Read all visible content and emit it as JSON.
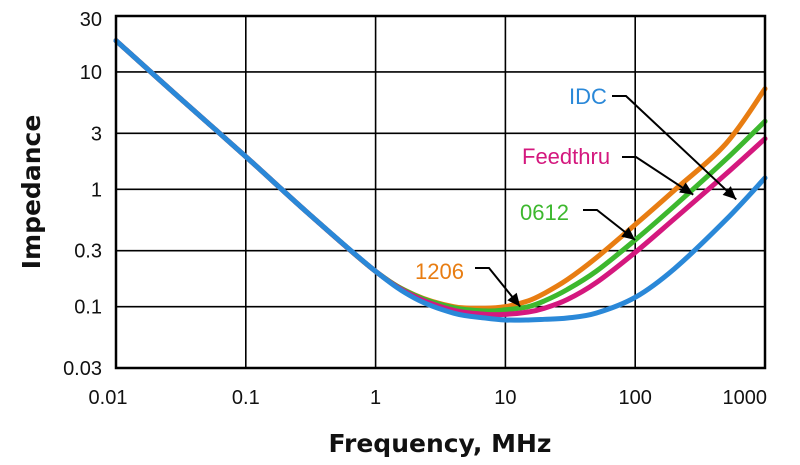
{
  "chart_data": {
    "type": "line",
    "title": "",
    "xlabel": "Frequency, MHz",
    "ylabel": "Impedance",
    "x_scale": "log",
    "y_scale": "log",
    "xlim": [
      0.01,
      1000
    ],
    "ylim": [
      0.03,
      30
    ],
    "grid": true,
    "x_ticks": [
      {
        "value": 0.01,
        "label": "0.01"
      },
      {
        "value": 0.1,
        "label": "0.1"
      },
      {
        "value": 1,
        "label": "1"
      },
      {
        "value": 10,
        "label": "10"
      },
      {
        "value": 100,
        "label": "100"
      },
      {
        "value": 1000,
        "label": "1000"
      }
    ],
    "y_ticks": [
      {
        "value": 0.03,
        "label": "0.03"
      },
      {
        "value": 0.1,
        "label": "0.1"
      },
      {
        "value": 0.3,
        "label": "0.3"
      },
      {
        "value": 1,
        "label": "1"
      },
      {
        "value": 3,
        "label": "3"
      },
      {
        "value": 10,
        "label": "10"
      },
      {
        "value": 30,
        "label": "30"
      }
    ],
    "series": [
      {
        "name": "1206",
        "color": "#E87D12",
        "label_anchor": {
          "x": 13,
          "y": 0.1
        },
        "x": [
          0.01,
          0.03,
          0.1,
          0.3,
          1,
          2,
          4,
          7,
          10,
          15,
          20,
          30,
          50,
          100,
          200,
          500,
          1000
        ],
        "y": [
          18.5,
          6.2,
          1.9,
          0.63,
          0.2,
          0.126,
          0.1,
          0.097,
          0.1,
          0.112,
          0.13,
          0.17,
          0.26,
          0.5,
          0.98,
          2.45,
          7.2
        ]
      },
      {
        "name": "0612",
        "color": "#3DB82E",
        "label_anchor": {
          "x": 100,
          "y": 0.37
        },
        "x": [
          0.01,
          0.03,
          0.1,
          0.3,
          1,
          2,
          4,
          7,
          10,
          15,
          20,
          30,
          50,
          100,
          200,
          500,
          1000
        ],
        "y": [
          18.5,
          6.2,
          1.9,
          0.63,
          0.2,
          0.125,
          0.098,
          0.092,
          0.094,
          0.1,
          0.112,
          0.14,
          0.2,
          0.37,
          0.72,
          1.8,
          3.8
        ]
      },
      {
        "name": "Feedthru",
        "color": "#D4187E",
        "label_anchor": {
          "x": 280,
          "y": 0.9
        },
        "x": [
          0.01,
          0.03,
          0.1,
          0.3,
          1,
          2,
          4,
          7,
          10,
          15,
          20,
          30,
          50,
          100,
          200,
          500,
          1000
        ],
        "y": [
          18.5,
          6.2,
          1.9,
          0.63,
          0.2,
          0.122,
          0.093,
          0.086,
          0.086,
          0.09,
          0.097,
          0.115,
          0.16,
          0.29,
          0.56,
          1.35,
          2.7
        ]
      },
      {
        "name": "IDC",
        "color": "#2A88D8",
        "label_anchor": {
          "x": 600,
          "y": 0.82
        },
        "x": [
          0.01,
          0.03,
          0.1,
          0.3,
          1,
          2,
          4,
          7,
          10,
          15,
          20,
          30,
          50,
          100,
          200,
          500,
          1000
        ],
        "y": [
          18.5,
          6.2,
          1.9,
          0.63,
          0.2,
          0.118,
          0.088,
          0.08,
          0.077,
          0.077,
          0.078,
          0.08,
          0.088,
          0.12,
          0.21,
          0.55,
          1.25
        ]
      }
    ]
  }
}
